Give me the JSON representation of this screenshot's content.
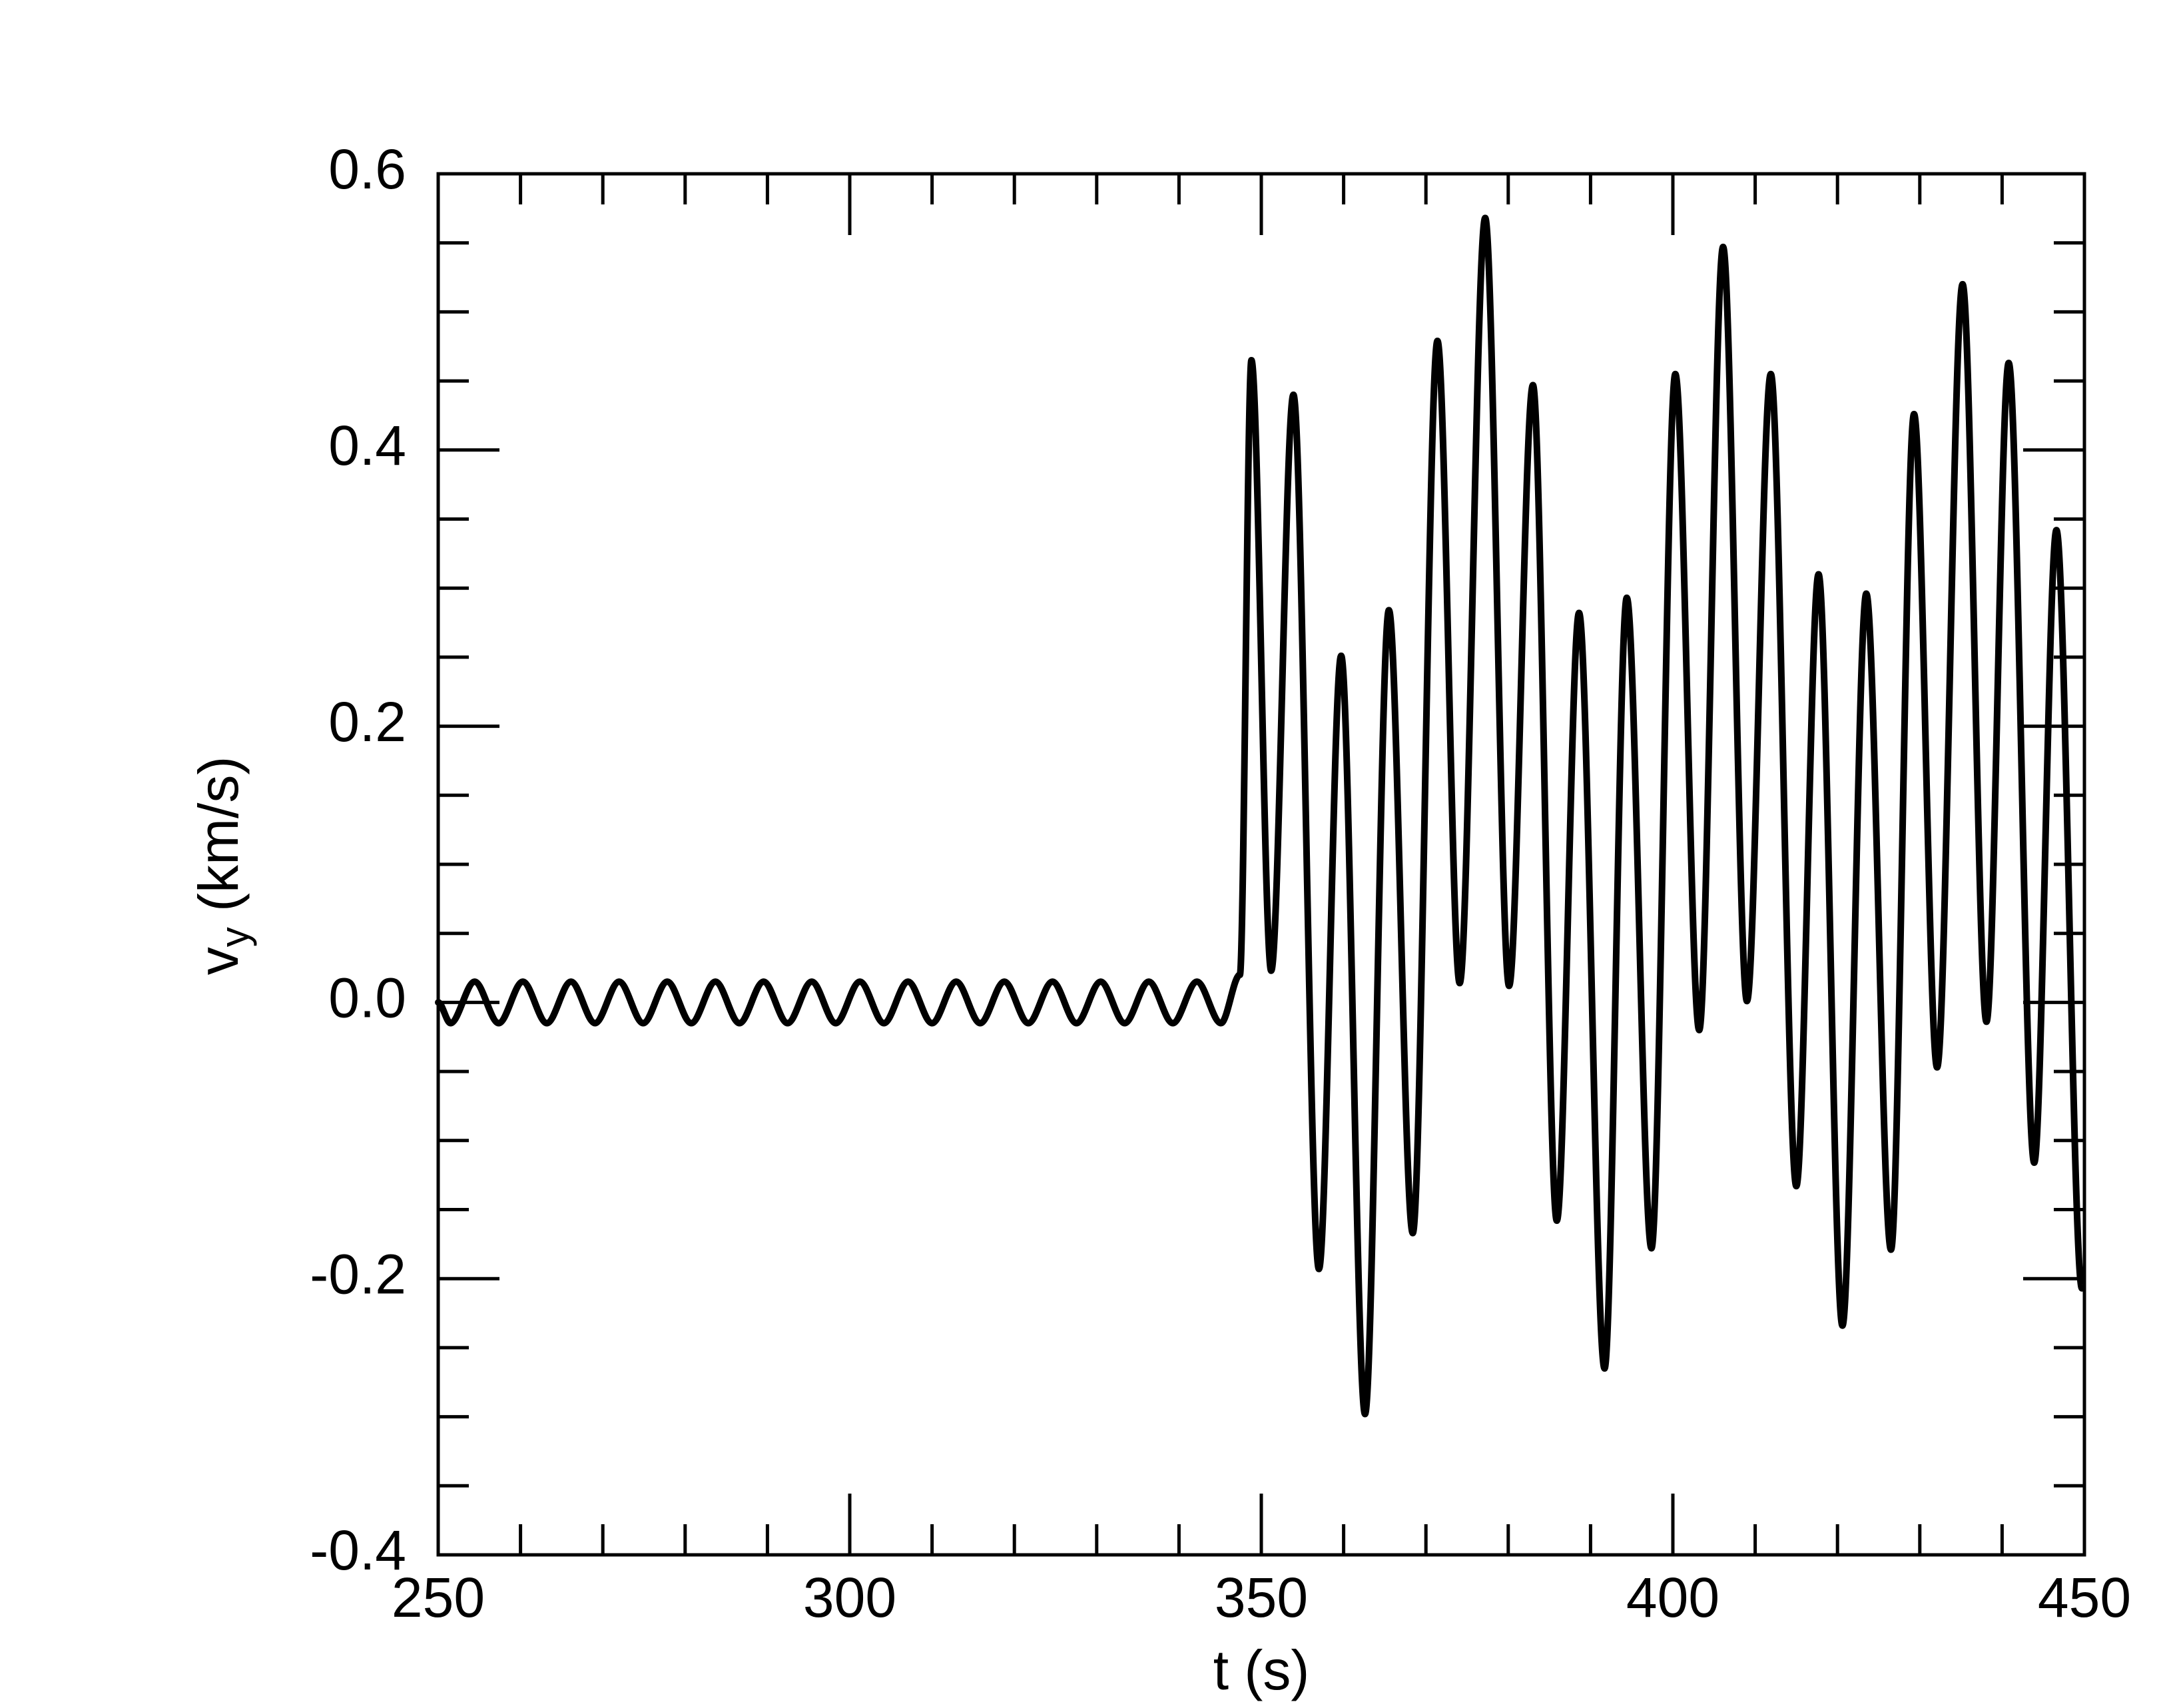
{
  "chart_data": {
    "type": "line",
    "xlabel": "t (s)",
    "ylabel": [
      "v",
      "y",
      " (km/s)"
    ],
    "xlim": [
      250,
      450
    ],
    "ylim": [
      -0.4,
      0.6
    ],
    "xticks": [
      250,
      300,
      350,
      400,
      450
    ],
    "yticks": [
      -0.4,
      -0.2,
      {
        "value": 0,
        "label": "0.0"
      },
      0.2,
      0.4,
      0.6
    ],
    "minor_xticks": [
      260,
      270,
      280,
      290,
      310,
      320,
      330,
      340,
      360,
      370,
      380,
      390,
      410,
      420,
      430,
      440
    ],
    "minor_yticks": [
      -0.35,
      -0.3,
      -0.25,
      -0.15,
      -0.1,
      -0.05,
      0.05,
      0.1,
      0.15,
      0.25,
      0.3,
      0.35,
      0.45,
      0.5,
      0.55
    ],
    "series": [
      {
        "color": "#000000",
        "x": [
          250,
          251.5,
          254.43,
          257.35,
          260.28,
          263.2,
          266.13,
          269.05,
          271.98,
          274.9,
          277.83,
          280.75,
          283.68,
          286.6,
          289.53,
          292.45,
          295.38,
          298.3,
          301.23,
          304.15,
          307.08,
          310.0,
          312.93,
          315.85,
          318.78,
          321.7,
          324.63,
          327.55,
          330.48,
          333.4,
          336.33,
          339.25,
          342.18,
          345.1,
          347.4,
          348.8,
          351.2,
          353.9,
          357.0,
          359.7,
          362.6,
          365.5,
          368.4,
          371.4,
          374.1,
          377.2,
          380.1,
          383.0,
          385.9,
          388.6,
          391.7,
          394.4,
          397.4,
          400.3,
          403.2,
          406.1,
          409.0,
          411.9,
          415.0,
          417.7,
          420.6,
          423.5,
          426.5,
          429.3,
          432.1,
          435.2,
          438.1,
          440.8,
          443.9,
          446.6,
          449.7
        ],
        "values": [
          0,
          -0.015,
          0.015,
          -0.015,
          0.015,
          -0.015,
          0.015,
          -0.015,
          0.015,
          -0.015,
          0.015,
          -0.015,
          0.015,
          -0.015,
          0.015,
          -0.015,
          0.015,
          -0.015,
          0.015,
          -0.015,
          0.015,
          -0.015,
          0.015,
          -0.015,
          0.015,
          -0.015,
          0.015,
          -0.015,
          0.015,
          -0.015,
          0.015,
          -0.015,
          0.015,
          -0.015,
          0.02,
          0.465,
          0.023,
          0.44,
          -0.193,
          0.251,
          -0.298,
          0.284,
          -0.167,
          0.479,
          0.014,
          0.568,
          0.012,
          0.447,
          -0.158,
          0.282,
          -0.265,
          0.293,
          -0.178,
          0.455,
          -0.02,
          0.547,
          0.001,
          0.455,
          -0.133,
          0.31,
          -0.234,
          0.296,
          -0.179,
          0.426,
          -0.047,
          0.52,
          -0.014,
          0.463,
          -0.116,
          0.342,
          -0.207
        ]
      }
    ]
  }
}
